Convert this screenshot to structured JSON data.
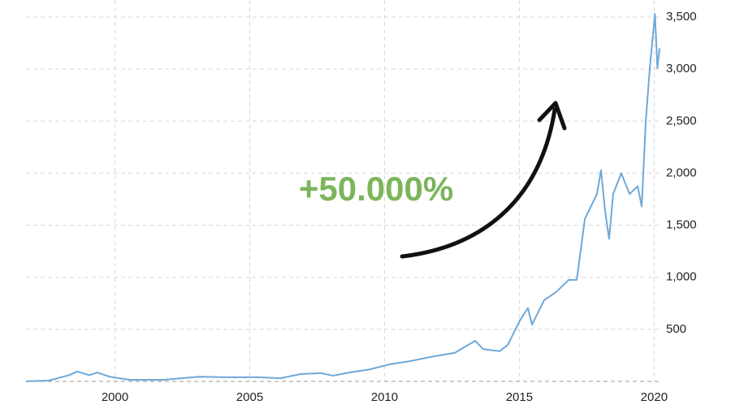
{
  "chart_data": {
    "type": "line",
    "annotation": "+50.000%",
    "x": [
      1996.7,
      1997.54,
      1998.3,
      1998.6,
      1999.05,
      1999.35,
      1999.8,
      2000.56,
      2001.76,
      2003.12,
      2004.17,
      2005.38,
      2006.13,
      2006.88,
      2007.64,
      2008.09,
      2008.69,
      2009.44,
      2010.2,
      2010.95,
      2011.7,
      2012.61,
      2013.36,
      2013.66,
      2014.27,
      2014.57,
      2015.02,
      2015.32,
      2015.47,
      2015.92,
      2016.37,
      2016.83,
      2017.13,
      2017.43,
      2017.88,
      2018.03,
      2018.18,
      2018.33,
      2018.48,
      2018.78,
      2019.09,
      2019.39,
      2019.54,
      2019.69,
      2019.84,
      2020.03,
      2020.12,
      2020.2
    ],
    "values": [
      1,
      8,
      60,
      95,
      60,
      85,
      45,
      15,
      15,
      45,
      40,
      40,
      30,
      70,
      80,
      55,
      85,
      115,
      165,
      195,
      235,
      275,
      390,
      310,
      290,
      350,
      585,
      705,
      545,
      780,
      860,
      975,
      975,
      1560,
      1800,
      2030,
      1640,
      1370,
      1800,
      2000,
      1800,
      1875,
      1680,
      2500,
      3010,
      3530,
      3010,
      3200
    ],
    "color": "#6fa8d8",
    "xlim": [
      1996.7,
      2020.2
    ],
    "xticks": [
      2000,
      2005,
      2010,
      2015,
      2020
    ],
    "ylim": [
      0,
      3500
    ],
    "yticks": [
      {
        "value": 500,
        "label": "500"
      },
      {
        "value": 1000,
        "label": "1,000"
      },
      {
        "value": 1500,
        "label": "1,500"
      },
      {
        "value": 2000,
        "label": "2,000"
      },
      {
        "value": 2500,
        "label": "2,500"
      },
      {
        "value": 3000,
        "label": "3,000"
      },
      {
        "value": 3500,
        "label": "3,500"
      }
    ],
    "grid": true
  }
}
